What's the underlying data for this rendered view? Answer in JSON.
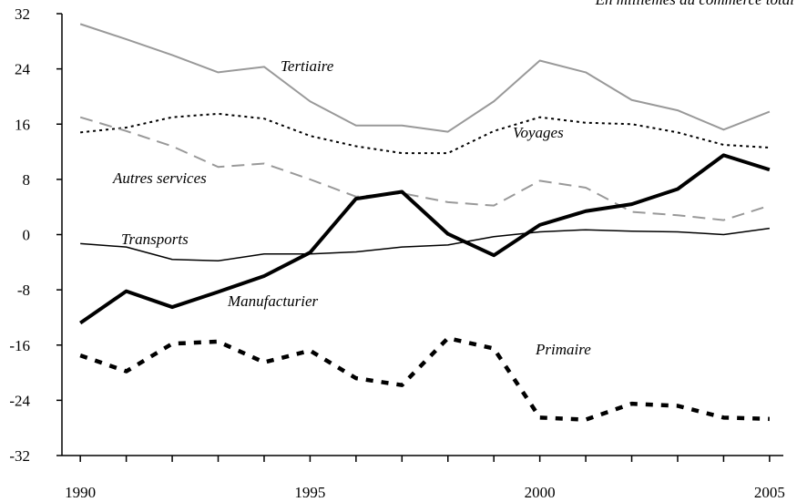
{
  "chart_data": {
    "type": "line",
    "annotation": "En millièmes du commerce total",
    "x": [
      1990,
      1991,
      1992,
      1993,
      1994,
      1995,
      1996,
      1997,
      1998,
      1999,
      2000,
      2001,
      2002,
      2003,
      2004,
      2005
    ],
    "series": [
      {
        "name": "Tertiaire",
        "color": "#999999",
        "width": 2,
        "dash": "none",
        "values": [
          30.5,
          28.3,
          26.0,
          23.5,
          24.3,
          19.3,
          15.8,
          15.8,
          14.9,
          19.3,
          25.2,
          23.5,
          19.5,
          18.0,
          15.2,
          17.8
        ]
      },
      {
        "name": "Voyages",
        "color": "#000000",
        "width": 2,
        "dash": "3 4",
        "values": [
          14.8,
          15.5,
          17.0,
          17.5,
          16.8,
          14.3,
          12.8,
          11.8,
          11.8,
          15.0,
          17.0,
          16.2,
          16.0,
          14.8,
          13.0,
          12.6
        ]
      },
      {
        "name": "Autres services",
        "color": "#999999",
        "width": 2,
        "dash": "14 8",
        "values": [
          17.0,
          15.0,
          12.8,
          9.8,
          10.3,
          8.0,
          5.5,
          6.0,
          4.7,
          4.2,
          7.8,
          6.8,
          3.3,
          2.8,
          2.1,
          4.2
        ]
      },
      {
        "name": "Transports",
        "color": "#000000",
        "width": 1.5,
        "dash": "none",
        "values": [
          -1.3,
          -1.8,
          -3.6,
          -3.8,
          -2.8,
          -2.8,
          -2.5,
          -1.8,
          -1.5,
          -0.3,
          0.4,
          0.7,
          0.5,
          0.4,
          0.0,
          0.9
        ]
      },
      {
        "name": "Manufacturier",
        "color": "#000000",
        "width": 4,
        "dash": "none",
        "values": [
          -12.8,
          -8.2,
          -10.5,
          -8.3,
          -6.0,
          -2.6,
          5.2,
          6.2,
          0.1,
          -3.0,
          1.4,
          3.4,
          4.4,
          6.6,
          11.5,
          9.4
        ]
      },
      {
        "name": "Primaire",
        "color": "#000000",
        "width": 4.5,
        "dash": "8 9",
        "values": [
          -17.5,
          -19.8,
          -15.8,
          -15.5,
          -18.5,
          -16.8,
          -20.8,
          -21.8,
          -15.0,
          -16.5,
          -26.5,
          -26.8,
          -24.5,
          -24.8,
          -26.5,
          -26.7
        ]
      }
    ],
    "xlim": [
      1989.6,
      2005.3
    ],
    "xticks": [
      1990,
      1995,
      2000,
      2005
    ],
    "ylim": [
      -32,
      32
    ],
    "yticks": [
      -32,
      -24,
      -16,
      -8,
      0,
      8,
      16,
      24,
      32
    ]
  }
}
